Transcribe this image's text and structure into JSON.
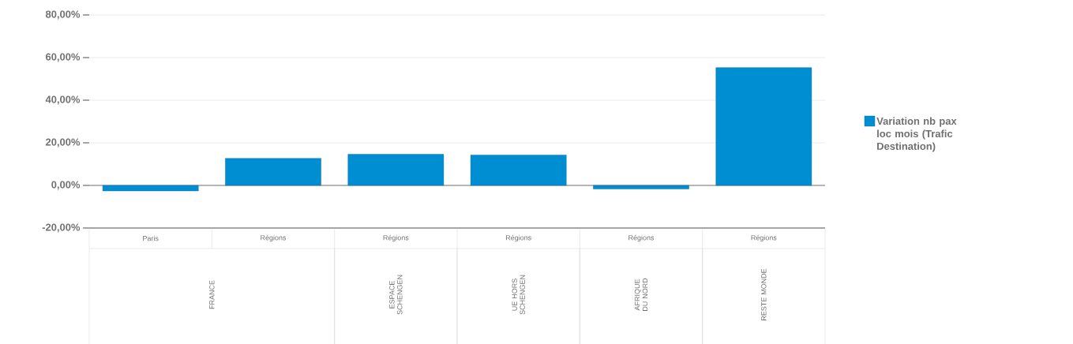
{
  "chart_data": {
    "type": "bar",
    "categories": [
      "Paris",
      "Régions",
      "Régions",
      "Régions",
      "Régions",
      "Régions"
    ],
    "ylim": [
      -20,
      80
    ],
    "yticks": [
      {
        "value": -20,
        "label": "-20,00%"
      },
      {
        "value": 0,
        "label": "0,00%"
      },
      {
        "value": 20,
        "label": "20,00%"
      },
      {
        "value": 40,
        "label": "40,00%"
      },
      {
        "value": 60,
        "label": "60,00%"
      },
      {
        "value": 80,
        "label": "80,00%"
      }
    ],
    "grid": "y",
    "legend": "right",
    "series": [
      {
        "name": "Variation nb pax loc mois (Trafic Destination)",
        "color": "#008ed3",
        "values": [
          -2.6,
          12.7,
          14.6,
          14.3,
          -1.7,
          55.3
        ]
      }
    ],
    "annotations": [
      "FRANCE",
      "ESPACE SCHENGEN",
      "UE HORS SCHENGEN",
      "AFRIQUE DU NORD",
      "RESTE MONDE"
    ]
  }
}
